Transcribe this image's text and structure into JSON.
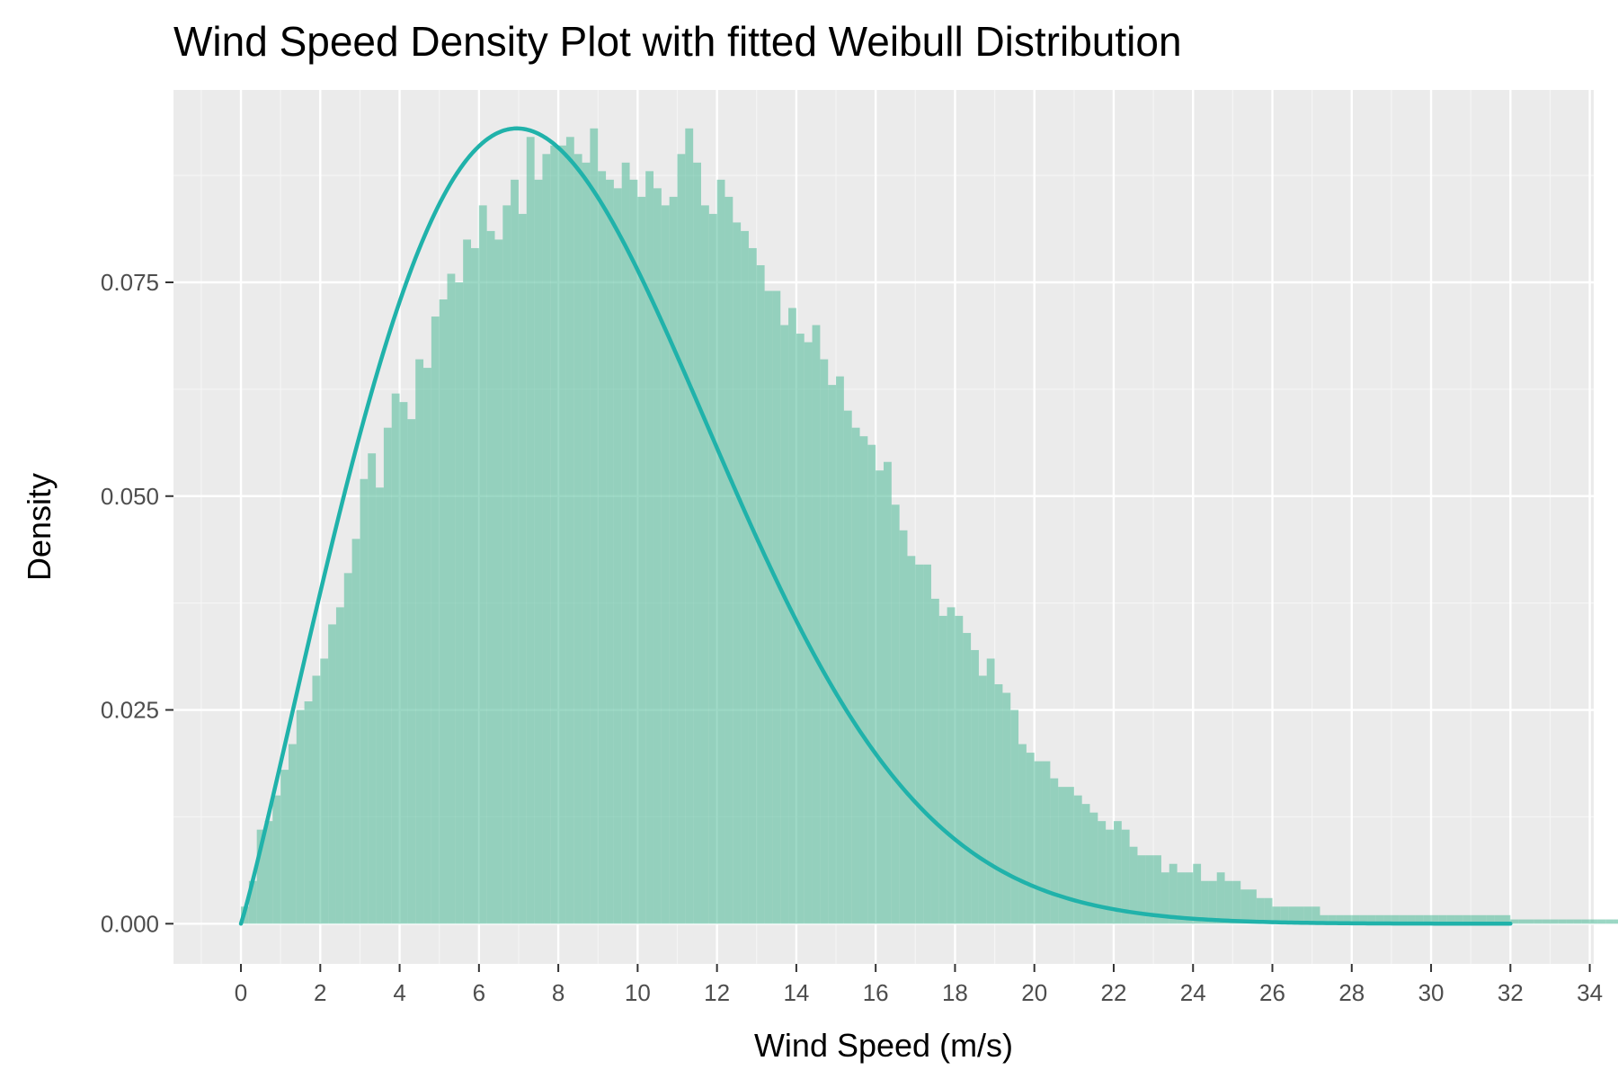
{
  "chart_data": {
    "type": "bar",
    "title": "Wind Speed Density Plot with fitted Weibull Distribution",
    "xlabel": "Wind Speed (m/s)",
    "ylabel": "Density",
    "xlim": [
      -1.7,
      34.1
    ],
    "ylim": [
      -0.0047,
      0.0975
    ],
    "x_ticks": [
      0,
      2,
      4,
      6,
      8,
      10,
      12,
      14,
      16,
      18,
      20,
      22,
      24,
      26,
      28,
      30,
      32,
      34
    ],
    "y_ticks": [
      0.0,
      0.025,
      0.05,
      0.075
    ],
    "y_tick_labels": [
      "0.000",
      "0.025",
      "0.050",
      "0.075"
    ],
    "grid": true,
    "histogram": {
      "bin_width": 0.2,
      "bin_start": 0,
      "fill_color": "#66c2a5",
      "density": [
        0.002,
        0.005,
        0.011,
        0.012,
        0.015,
        0.018,
        0.021,
        0.025,
        0.026,
        0.029,
        0.031,
        0.035,
        0.037,
        0.041,
        0.045,
        0.052,
        0.055,
        0.051,
        0.058,
        0.062,
        0.061,
        0.059,
        0.066,
        0.065,
        0.071,
        0.073,
        0.076,
        0.075,
        0.08,
        0.079,
        0.084,
        0.081,
        0.08,
        0.084,
        0.087,
        0.083,
        0.092,
        0.087,
        0.09,
        0.091,
        0.091,
        0.092,
        0.09,
        0.089,
        0.093,
        0.088,
        0.087,
        0.086,
        0.089,
        0.087,
        0.085,
        0.088,
        0.086,
        0.084,
        0.085,
        0.09,
        0.093,
        0.089,
        0.084,
        0.083,
        0.087,
        0.085,
        0.082,
        0.081,
        0.079,
        0.077,
        0.074,
        0.074,
        0.07,
        0.072,
        0.069,
        0.068,
        0.07,
        0.066,
        0.063,
        0.064,
        0.06,
        0.058,
        0.057,
        0.056,
        0.053,
        0.054,
        0.049,
        0.046,
        0.043,
        0.042,
        0.042,
        0.038,
        0.036,
        0.037,
        0.036,
        0.034,
        0.032,
        0.029,
        0.031,
        0.028,
        0.027,
        0.025,
        0.021,
        0.02,
        0.019,
        0.019,
        0.017,
        0.016,
        0.016,
        0.015,
        0.014,
        0.013,
        0.012,
        0.011,
        0.012,
        0.011,
        0.009,
        0.008,
        0.008,
        0.008,
        0.006,
        0.007,
        0.006,
        0.006,
        0.007,
        0.005,
        0.005,
        0.006,
        0.005,
        0.005,
        0.004,
        0.004,
        0.003,
        0.003,
        0.002,
        0.002,
        0.002,
        0.002,
        0.002,
        0.002,
        0.001,
        0.001,
        0.001,
        0.001,
        0.001,
        0.001,
        0.001,
        0.001,
        0.001,
        0.001,
        0.001,
        0.001,
        0.001,
        0.001,
        0.001,
        0.001,
        0.001,
        0.001,
        0.001,
        0.001,
        0.001,
        0.001,
        0.001,
        0.001,
        0.0005,
        0.0005,
        0.0005,
        0.0005,
        0.0005,
        0.0005,
        0.0005,
        0.0005,
        0.0005,
        0.0005,
        0.0005,
        0.0005,
        0.0005,
        0.0005,
        0.0005,
        0.0005,
        0.0005,
        0.0005,
        0.0005,
        0.0005,
        0.0005,
        0.0005,
        0.0005,
        0.0005,
        0.0005,
        0.0005,
        0.0005,
        0.0005,
        0.0005,
        0.0005,
        0.0005,
        0.0005,
        0.0005,
        0.0005,
        0.0005,
        0.0005,
        0.0005,
        0.0005,
        0.0005,
        0.0005,
        0.0005,
        0.0005,
        0.0005,
        0.0005,
        0.0005,
        0.0005,
        0.0005,
        0.0005,
        0.0005,
        0.0005,
        0.0005,
        0.0005,
        0.0005,
        0.0005,
        0.0005,
        0.0005,
        0.0005,
        0.0005,
        0.0005,
        0.0005,
        0.0005,
        0.0005,
        0.0005,
        0.0005,
        0.0005,
        0.0005,
        0.0005,
        0.0005,
        0.0005,
        0.0005,
        0.0005,
        0.0005,
        0.0005,
        0.0005,
        0.0005,
        0.0005,
        0.0005,
        0.0005,
        0.0005,
        0.0005,
        0.0005,
        0.0005,
        0.0005,
        0.0005,
        0.0005,
        0.0005,
        0.0005,
        0.0005,
        0.0005,
        0.0005,
        0.0005,
        0.0005,
        0.0005,
        0.0005,
        0.0005,
        0.0005,
        0.0005,
        0.0005,
        0.0005,
        0.0005,
        0.0005,
        0.0005,
        0.0005,
        0.0005,
        0.0005,
        0.0005,
        0.0005,
        0.0005,
        0.0005,
        0.0005,
        0.0005,
        0.0005,
        0.0005,
        0.0005,
        0.0005,
        0.0005,
        0.0005,
        0.0005,
        0.0005,
        0.0005,
        0.0005,
        0.0005,
        0.0005,
        0.0005,
        0.0005,
        0.0005,
        0.0005,
        0.0005,
        0.0005,
        0.0005,
        0.0005,
        0.0005,
        0.0005,
        0.0005,
        0.0005,
        0.0005,
        0.0005,
        0.0005,
        0.0005,
        0.0005,
        0.0005,
        0.0005,
        0.0005,
        0.0005,
        0.0005,
        0.0005,
        0.0005,
        0.0005,
        0.0005,
        0.0005,
        0.0005,
        0.0005,
        0.0005,
        0.0005,
        0.0005,
        0.0005,
        0.0005,
        0.0005,
        0.0005,
        0.0005,
        0.0005,
        0.0005,
        0.0005,
        0.0005
      ]
    },
    "weibull_curve": {
      "color": "#20b2aa",
      "x_range": [
        0,
        32
      ],
      "shape_k": 2.09,
      "scale_lambda": 9.5
    }
  },
  "colors": {
    "panel_background": "#ebebeb",
    "grid_major": "#ffffff",
    "grid_minor": "#f5f5f5",
    "tick_color": "#333333"
  }
}
